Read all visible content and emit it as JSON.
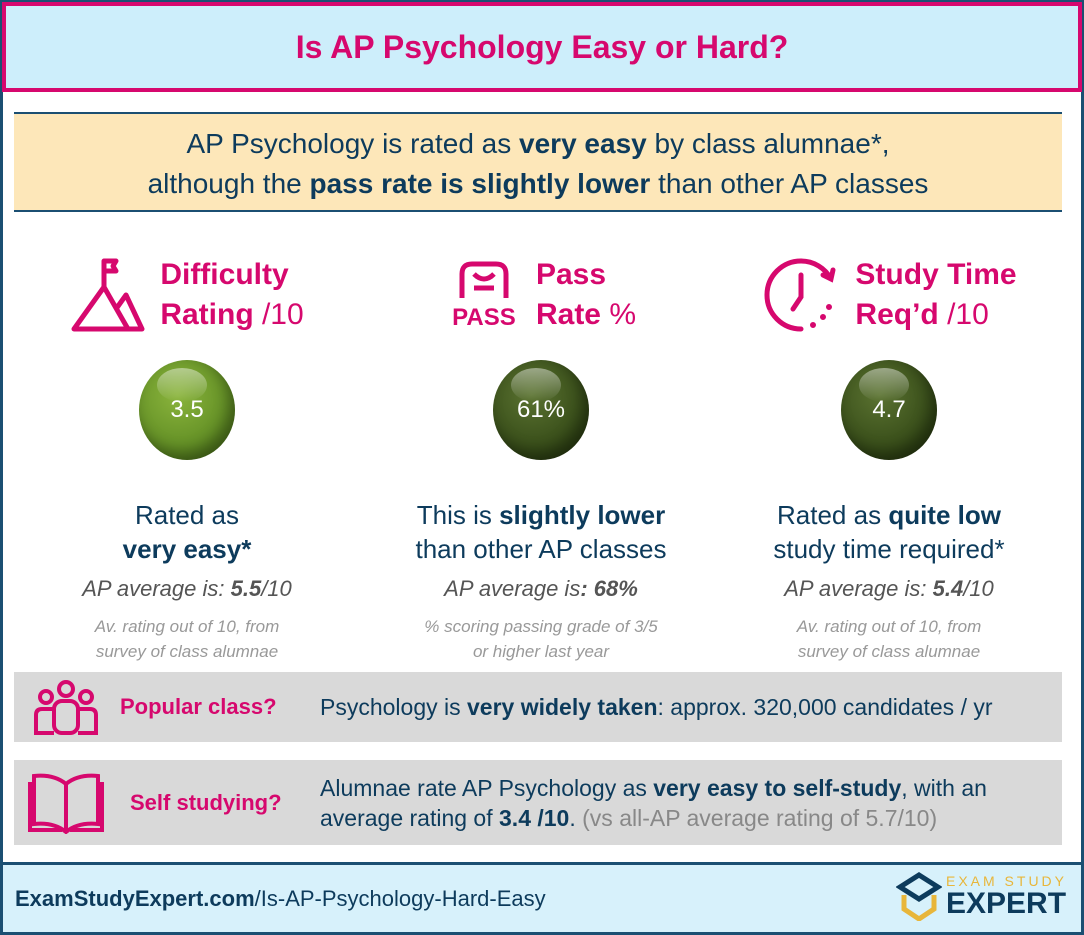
{
  "title": "Is AP Psychology Easy or Hard?",
  "summary": {
    "l1a": "AP Psychology is rated as ",
    "l1b": "very easy",
    "l1c": " by class alumnae*,",
    "l2a": "although the ",
    "l2b": "pass rate is slightly lower",
    "l2c": " than other AP classes"
  },
  "colors": {
    "accent": "#d6086e",
    "navy": "#1b4f72",
    "ball_light": "#6a9a2a",
    "ball_dark": "#3a4f1a"
  },
  "columns": [
    {
      "icon": "mountain-flag-icon",
      "h1": "Difficulty",
      "h2": "Rating",
      "h2n": " /10",
      "value": "3.5",
      "desc_a": "Rated as",
      "desc_b": "very easy*",
      "desc_c": "",
      "avg_a": "AP average is: ",
      "avg_b": "5.5",
      "avg_c": "/10",
      "note1": "Av. rating out of 10, from",
      "note2": "survey of class alumnae"
    },
    {
      "icon": "pass-icon",
      "icon_text": "PASS",
      "h1": "Pass",
      "h2": "Rate",
      "h2n": " %",
      "value": "61%",
      "desc_a": "This is ",
      "desc_b": "slightly lower",
      "desc_c": "than other AP classes",
      "avg_a": "AP average is",
      "avg_b": ": 68%",
      "avg_c": "",
      "note1": "% scoring passing grade of 3/5",
      "note2": "or higher last year"
    },
    {
      "icon": "clock-icon",
      "h1": "Study Time",
      "h2": "Req’d",
      "h2n": " /10",
      "value": "4.7",
      "desc_a": "Rated as ",
      "desc_b": "quite low",
      "desc_c": "study time required*",
      "avg_a": "AP average is: ",
      "avg_b": "5.4",
      "avg_c": "/10",
      "note1": "Av. rating out of 10, from",
      "note2": "survey of class alumnae"
    }
  ],
  "popular": {
    "icon": "people-icon",
    "label": "Popular class?",
    "a": "Psychology is ",
    "b": "very widely taken",
    "c": ": approx. 320,000  candidates / yr"
  },
  "self": {
    "icon": "book-icon",
    "label": "Self studying?",
    "a": "Alumnae rate AP Psychology as ",
    "b": "very easy to self-study",
    "c": ", with an average rating of ",
    "d": "3.4 /10",
    "e": ". ",
    "f": "(vs all-AP average rating of 5.7/10)"
  },
  "footer": {
    "domain": "ExamStudyExpert.com",
    "path": "/Is-AP-Psychology-Hard-Easy",
    "logo_top": "EXAM STUDY",
    "logo_bottom": "EXPERT"
  }
}
